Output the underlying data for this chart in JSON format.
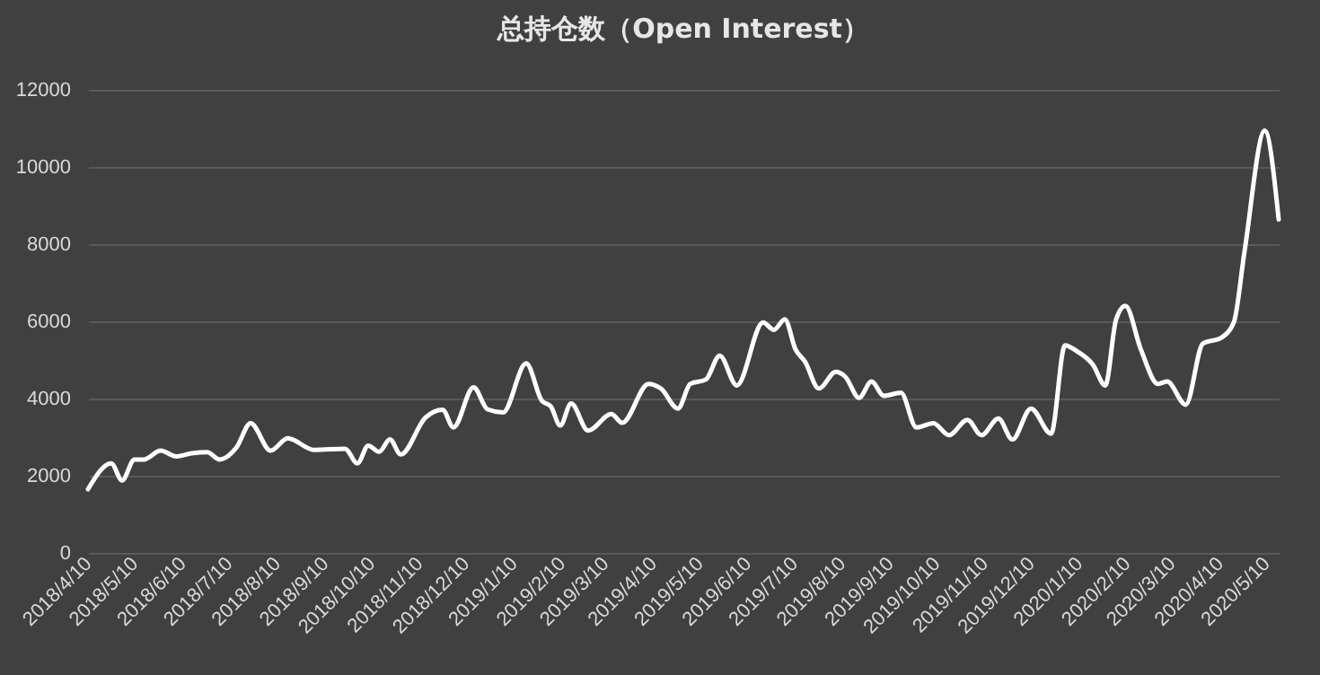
{
  "chart_data": {
    "type": "line",
    "title": "总持仓数（Open Interest）",
    "x": [
      "2018-04-10",
      "2018-04-25",
      "2018-05-02",
      "2018-05-10",
      "2018-05-16",
      "2018-05-27",
      "2018-06-06",
      "2018-06-16",
      "2018-06-26",
      "2018-07-04",
      "2018-07-15",
      "2018-07-24",
      "2018-08-06",
      "2018-08-17",
      "2018-09-03",
      "2018-09-23",
      "2018-10-01",
      "2018-10-08",
      "2018-10-15",
      "2018-10-22",
      "2018-10-29",
      "2018-11-14",
      "2018-11-25",
      "2018-12-02",
      "2018-12-15",
      "2018-12-24",
      "2019-01-03",
      "2019-01-18",
      "2019-01-28",
      "2019-02-03",
      "2019-02-09",
      "2019-02-16",
      "2019-02-27",
      "2019-03-14",
      "2019-03-21",
      "2019-04-07",
      "2019-04-15",
      "2019-04-26",
      "2019-05-04",
      "2019-05-14",
      "2019-05-23",
      "2019-06-03",
      "2019-06-20",
      "2019-06-27",
      "2019-07-04",
      "2019-07-11",
      "2019-07-17",
      "2019-07-26",
      "2019-08-06",
      "2019-08-12",
      "2019-08-21",
      "2019-08-29",
      "2019-09-06",
      "2019-09-17",
      "2019-09-27",
      "2019-10-08",
      "2019-10-18",
      "2019-10-30",
      "2019-11-08",
      "2019-11-19",
      "2019-11-28",
      "2019-12-10",
      "2019-12-23",
      "2020-01-01",
      "2020-01-09",
      "2020-01-19",
      "2020-01-27",
      "2020-02-03",
      "2020-02-09",
      "2020-02-19",
      "2020-03-01",
      "2020-03-07",
      "2020-03-19",
      "2020-03-30",
      "2020-04-11",
      "2020-04-19",
      "2020-04-26",
      "2020-05-09",
      "2020-05-18"
    ],
    "series": [
      {
        "color": "#ffffff",
        "values": [
          1650,
          2320,
          1880,
          2420,
          2420,
          2650,
          2500,
          2580,
          2610,
          2420,
          2740,
          3360,
          2650,
          2970,
          2670,
          2700,
          2320,
          2780,
          2620,
          2940,
          2550,
          3510,
          3710,
          3250,
          4290,
          3720,
          3640,
          4910,
          3950,
          3790,
          3300,
          3870,
          3170,
          3600,
          3370,
          4380,
          4260,
          3740,
          4380,
          4490,
          5110,
          4340,
          5970,
          5780,
          6050,
          5270,
          4960,
          4260,
          4690,
          4570,
          4020,
          4440,
          4070,
          4150,
          3250,
          3360,
          3050,
          3450,
          3050,
          3480,
          2940,
          3740,
          3090,
          5380,
          5220,
          4880,
          4340,
          6050,
          6400,
          5270,
          4380,
          4440,
          3840,
          5420,
          5580,
          5970,
          7830,
          10940,
          8640
        ]
      }
    ],
    "xlim": [
      "2018-04-10",
      "2020-05-18"
    ],
    "xticks": [
      {
        "value": "2018-04-10",
        "label": "2018/4/10"
      },
      {
        "value": "2018-05-10",
        "label": "2018/5/10"
      },
      {
        "value": "2018-06-10",
        "label": "2018/6/10"
      },
      {
        "value": "2018-07-10",
        "label": "2018/7/10"
      },
      {
        "value": "2018-08-10",
        "label": "2018/8/10"
      },
      {
        "value": "2018-09-10",
        "label": "2018/9/10"
      },
      {
        "value": "2018-10-10",
        "label": "2018/10/10"
      },
      {
        "value": "2018-11-10",
        "label": "2018/11/10"
      },
      {
        "value": "2018-12-10",
        "label": "2018/12/10"
      },
      {
        "value": "2019-01-10",
        "label": "2019/1/10"
      },
      {
        "value": "2019-02-10",
        "label": "2019/2/10"
      },
      {
        "value": "2019-03-10",
        "label": "2019/3/10"
      },
      {
        "value": "2019-04-10",
        "label": "2019/4/10"
      },
      {
        "value": "2019-05-10",
        "label": "2019/5/10"
      },
      {
        "value": "2019-06-10",
        "label": "2019/6/10"
      },
      {
        "value": "2019-07-10",
        "label": "2019/7/10"
      },
      {
        "value": "2019-08-10",
        "label": "2019/8/10"
      },
      {
        "value": "2019-09-10",
        "label": "2019/9/10"
      },
      {
        "value": "2019-10-10",
        "label": "2019/10/10"
      },
      {
        "value": "2019-11-10",
        "label": "2019/11/10"
      },
      {
        "value": "2019-12-10",
        "label": "2019/12/10"
      },
      {
        "value": "2020-01-10",
        "label": "2020/1/10"
      },
      {
        "value": "2020-02-10",
        "label": "2020/2/10"
      },
      {
        "value": "2020-03-10",
        "label": "2020/3/10"
      },
      {
        "value": "2020-04-10",
        "label": "2020/4/10"
      },
      {
        "value": "2020-05-10",
        "label": "2020/5/10"
      }
    ],
    "ylim": [
      0,
      12000
    ],
    "yticks": [
      0,
      2000,
      4000,
      6000,
      8000,
      10000,
      12000
    ],
    "grid": "y",
    "marker": "none",
    "line_style": "solid"
  }
}
